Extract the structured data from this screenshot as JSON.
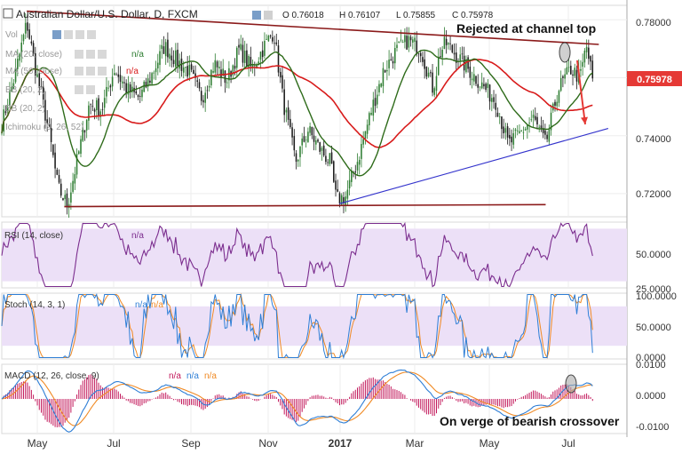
{
  "header": {
    "symbol_title": "Australian Dollar/U.S. Dollar, D, FXCM",
    "ohlc": {
      "o": "O 0.76018",
      "h": "H 0.76107",
      "l": "L 0.75855",
      "c": "C 0.75978"
    },
    "volume_label": "Vol",
    "ma_label_1": "MA (20, close)",
    "ma_label_2": "MA (50, close)",
    "bb_label": "BB (20, 2)",
    "ichimoku_label": "Ichimoku (9, 26, 52)",
    "na": "n/a"
  },
  "annotations": {
    "rejected": "Rejected at channel top",
    "macd_note": "On verge of bearish crossover"
  },
  "price_panel": {
    "price_tag": "0.75978",
    "ticks": [
      "0.78000",
      "0.76000",
      "0.74000",
      "0.72000"
    ]
  },
  "rsi_panel": {
    "label": "RSI (14, close)",
    "na": "n/a",
    "ticks": [
      "50.0000",
      "25.0000"
    ]
  },
  "stoch_panel": {
    "label": "Stoch (14, 3, 1)",
    "na": "n/a",
    "ticks": [
      "100.0000",
      "50.0000",
      "0.0000"
    ]
  },
  "macd_panel": {
    "label": "MACD (12, 26, close, 9)",
    "na": "n/a",
    "ticks": [
      "0.0100",
      "0.0000",
      "-0.0100"
    ]
  },
  "x_axis": {
    "labels": [
      "May",
      "Jul",
      "Sep",
      "Nov",
      "2017",
      "Mar",
      "May",
      "Jul"
    ]
  },
  "colors": {
    "candle_up": "#2e7d32",
    "candle_down": "#1b1b1b",
    "ma20": "#2e6b1a",
    "ma50": "#d81b1b",
    "channel": "#8b1a1a",
    "support": "#3333cc",
    "rsi": "#7b2d8e",
    "rsi_band": "#ece0f7",
    "stoch_k": "#2f7fd6",
    "stoch_d": "#f08a24",
    "macd": "#2f7fd6",
    "signal": "#f08a24",
    "hist": "#c2185b",
    "price_tag": "#e53935",
    "arrow": "#e53935"
  },
  "chart_data": {
    "type": "candlestick",
    "instrument": "AUD/USD",
    "timeframe": "D",
    "x_axis_months": [
      "May",
      "Jul",
      "Sep",
      "Nov",
      "2017",
      "Mar",
      "May",
      "Jul"
    ],
    "price_ylim": [
      0.712,
      0.785
    ],
    "close_path": [
      [
        0.0,
        0.744
      ],
      [
        0.02,
        0.76
      ],
      [
        0.04,
        0.779
      ],
      [
        0.055,
        0.762
      ],
      [
        0.075,
        0.742
      ],
      [
        0.09,
        0.722
      ],
      [
        0.105,
        0.716
      ],
      [
        0.12,
        0.731
      ],
      [
        0.14,
        0.751
      ],
      [
        0.16,
        0.749
      ],
      [
        0.18,
        0.763
      ],
      [
        0.2,
        0.756
      ],
      [
        0.22,
        0.753
      ],
      [
        0.24,
        0.761
      ],
      [
        0.26,
        0.771
      ],
      [
        0.28,
        0.766
      ],
      [
        0.3,
        0.762
      ],
      [
        0.32,
        0.753
      ],
      [
        0.34,
        0.765
      ],
      [
        0.36,
        0.759
      ],
      [
        0.38,
        0.77
      ],
      [
        0.4,
        0.763
      ],
      [
        0.42,
        0.771
      ],
      [
        0.435,
        0.776
      ],
      [
        0.45,
        0.752
      ],
      [
        0.47,
        0.731
      ],
      [
        0.49,
        0.742
      ],
      [
        0.51,
        0.735
      ],
      [
        0.525,
        0.731
      ],
      [
        0.535,
        0.718
      ],
      [
        0.55,
        0.719
      ],
      [
        0.57,
        0.732
      ],
      [
        0.59,
        0.748
      ],
      [
        0.61,
        0.762
      ],
      [
        0.63,
        0.769
      ],
      [
        0.65,
        0.773
      ],
      [
        0.67,
        0.77
      ],
      [
        0.69,
        0.756
      ],
      [
        0.7,
        0.768
      ],
      [
        0.71,
        0.772
      ],
      [
        0.73,
        0.767
      ],
      [
        0.75,
        0.762
      ],
      [
        0.77,
        0.757
      ],
      [
        0.79,
        0.752
      ],
      [
        0.81,
        0.737
      ],
      [
        0.83,
        0.741
      ],
      [
        0.85,
        0.746
      ],
      [
        0.87,
        0.737
      ],
      [
        0.89,
        0.756
      ],
      [
        0.91,
        0.763
      ],
      [
        0.925,
        0.76
      ],
      [
        0.935,
        0.771
      ],
      [
        0.945,
        0.7598
      ]
    ],
    "channel_resistance": [
      [
        0.04,
        0.783
      ],
      [
        0.955,
        0.7715
      ]
    ],
    "channel_support": [
      [
        0.1,
        0.7155
      ],
      [
        0.87,
        0.7162
      ]
    ],
    "rising_trendline": [
      [
        0.54,
        0.7165
      ],
      [
        0.97,
        0.7425
      ]
    ],
    "last_price": 0.75978,
    "indicators": {
      "rsi": {
        "params": "14, close",
        "ylim": [
          25,
          75
        ],
        "levels": [
          30,
          70
        ],
        "last_trend": "falling"
      },
      "stoch": {
        "params": "14, 3, 1",
        "ylim": [
          0,
          100
        ],
        "levels": [
          20,
          80
        ],
        "last_trend": "falling"
      },
      "macd": {
        "params": "12, 26, close, 9",
        "ylim": [
          -0.01,
          0.01
        ],
        "state": "on verge of bearish crossover"
      }
    }
  }
}
